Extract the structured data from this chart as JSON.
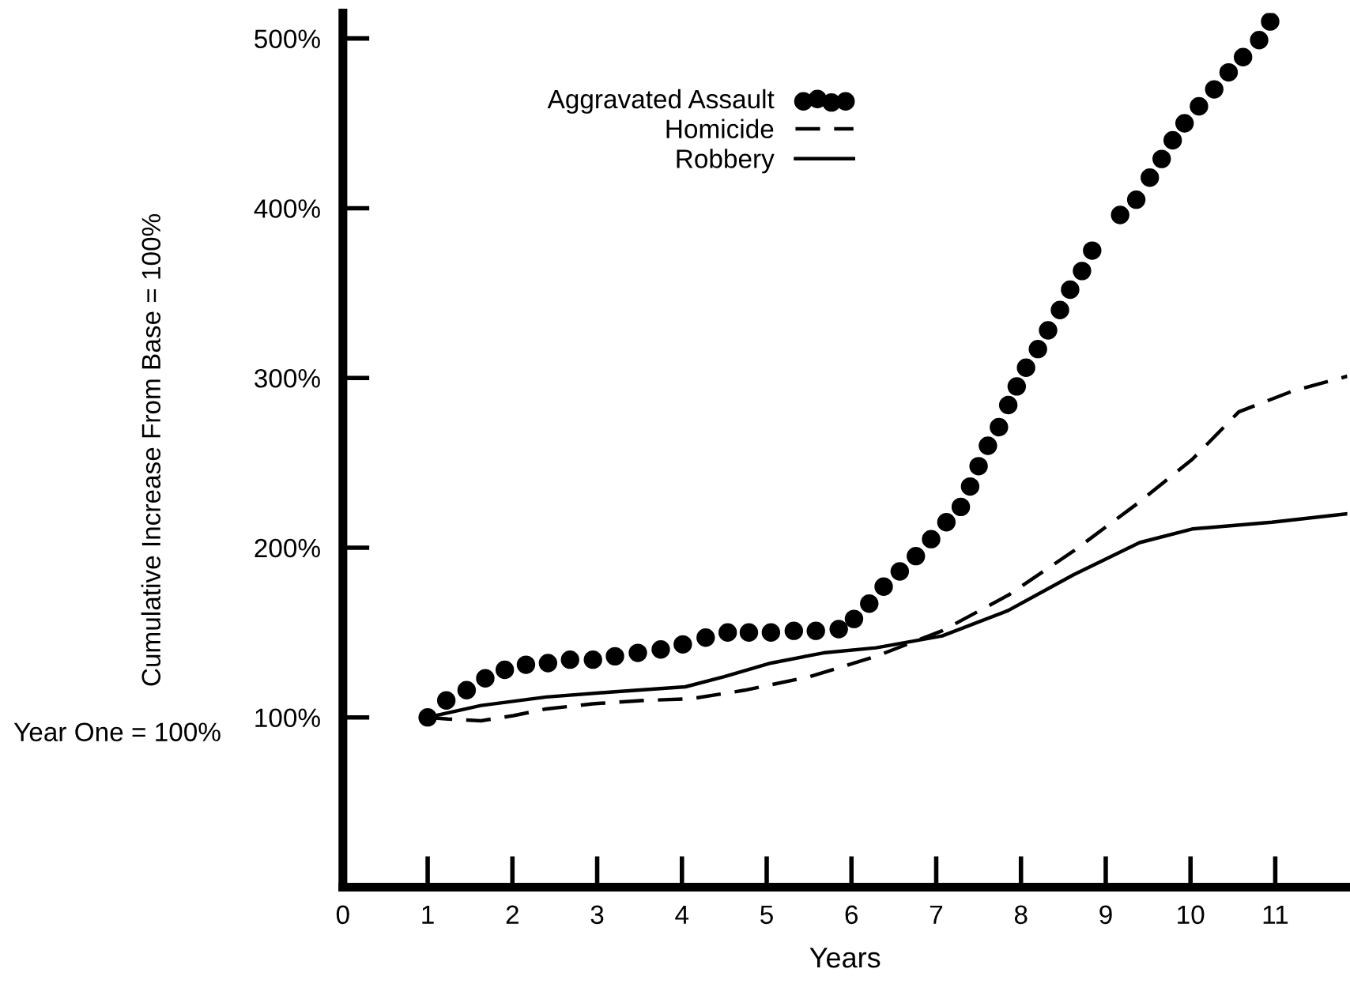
{
  "chart_data": {
    "type": "line",
    "xlabel": "Years",
    "ylabel": "Cumulative Increase From Base = 100%",
    "annotations": [
      "Year One = 100%"
    ],
    "xlim": [
      0,
      11.85
    ],
    "ylim": [
      0,
      515
    ],
    "xticks": [
      0,
      1,
      2,
      3,
      4,
      5,
      6,
      7,
      8,
      9,
      10,
      11
    ],
    "yticks": [
      {
        "value": 100,
        "label": "100%"
      },
      {
        "value": 200,
        "label": "200%"
      },
      {
        "value": 300,
        "label": "300%"
      },
      {
        "value": 400,
        "label": "400%"
      },
      {
        "value": 500,
        "label": "500%"
      }
    ],
    "grid": false,
    "legend": "top left",
    "series": [
      {
        "name": "Aggravated Assault",
        "type": "scatter",
        "marker": "circle",
        "color": "#000000",
        "x": [
          1.0,
          1.22,
          1.46,
          1.68,
          1.91,
          2.16,
          2.42,
          2.68,
          2.95,
          3.21,
          3.48,
          3.75,
          4.01,
          4.28,
          4.54,
          4.79,
          5.05,
          5.32,
          5.58,
          5.85,
          6.03,
          6.21,
          6.38,
          6.57,
          6.76,
          6.94,
          7.12,
          7.29,
          7.4,
          7.5,
          7.61,
          7.74,
          7.85,
          7.95,
          8.06,
          8.2,
          8.32,
          8.46,
          8.58,
          8.72,
          8.84,
          9.17,
          9.36,
          9.52,
          9.66,
          9.79,
          9.93,
          10.1,
          10.28,
          10.45,
          10.62,
          10.81,
          10.94
        ],
        "values": [
          100,
          110,
          116,
          123,
          128,
          131,
          132,
          134,
          134,
          136,
          138,
          140,
          143,
          147,
          150,
          150,
          150,
          151,
          151,
          152,
          158,
          167,
          177,
          186,
          195,
          205,
          215,
          224,
          236,
          248,
          260,
          271,
          284,
          295,
          306,
          317,
          328,
          340,
          352,
          363,
          375,
          396,
          405,
          418,
          429,
          440,
          450,
          460,
          470,
          480,
          489,
          499,
          510
        ]
      },
      {
        "name": "Homicide",
        "line_style": "dashed",
        "color": "#000000",
        "x": [
          1.0,
          1.24,
          1.63,
          2.01,
          2.4,
          2.95,
          3.57,
          4.11,
          4.74,
          5.51,
          6.29,
          7.07,
          7.85,
          8.62,
          9.4,
          10.02,
          10.57,
          11.19,
          11.85
        ],
        "values": [
          100,
          99,
          98,
          101,
          105,
          108,
          110,
          111,
          116,
          124,
          136,
          151,
          172,
          198,
          227,
          252,
          280,
          292,
          301
        ]
      },
      {
        "name": "Robbery",
        "line_style": "solid",
        "color": "#000000",
        "x": [
          1.0,
          1.63,
          2.4,
          3.18,
          4.04,
          4.5,
          5.05,
          5.67,
          6.29,
          7.07,
          7.85,
          8.62,
          9.4,
          10.02,
          10.96,
          11.85
        ],
        "values": [
          100,
          107,
          112,
          115,
          118,
          124,
          132,
          138,
          141,
          148,
          163,
          184,
          203,
          211,
          215,
          220
        ]
      }
    ]
  }
}
